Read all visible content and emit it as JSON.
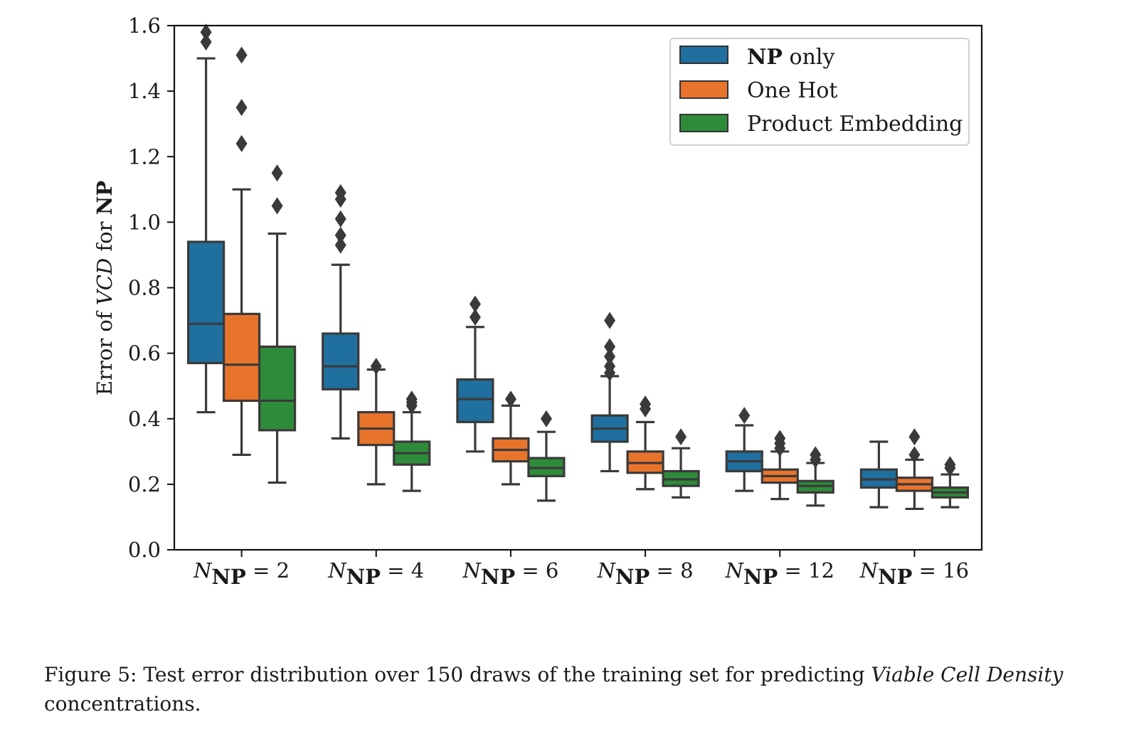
{
  "chart_data": {
    "type": "boxplot",
    "ylabel": {
      "prefix": "Error of ",
      "italic": "VCD",
      "middle": " for ",
      "bold": "NP"
    },
    "ylim": [
      0,
      1.6
    ],
    "yticks": [
      "0.0",
      "0.2",
      "0.4",
      "0.6",
      "0.8",
      "1.0",
      "1.2",
      "1.4",
      "1.6"
    ],
    "categories": [
      {
        "sym": "N",
        "sub": "NP",
        "rest": " = 2"
      },
      {
        "sym": "N",
        "sub": "NP",
        "rest": " = 4"
      },
      {
        "sym": "N",
        "sub": "NP",
        "rest": " = 6"
      },
      {
        "sym": "N",
        "sub": "NP",
        "rest": " = 8"
      },
      {
        "sym": "N",
        "sub": "NP",
        "rest": " = 12"
      },
      {
        "sym": "N",
        "sub": "NP",
        "rest": " = 16"
      }
    ],
    "legend_position": "upper right",
    "series": [
      {
        "name_bold": "NP",
        "name_rest": " only",
        "color": "#1f6f9f",
        "boxes": [
          {
            "whislo": 0.42,
            "q1": 0.57,
            "med": 0.69,
            "q3": 0.94,
            "whishi": 1.5,
            "fliers": [
              1.55,
              1.58
            ]
          },
          {
            "whislo": 0.34,
            "q1": 0.49,
            "med": 0.56,
            "q3": 0.66,
            "whishi": 0.87,
            "fliers": [
              0.93,
              0.96,
              1.01,
              1.07,
              1.09
            ]
          },
          {
            "whislo": 0.3,
            "q1": 0.39,
            "med": 0.46,
            "q3": 0.52,
            "whishi": 0.68,
            "fliers": [
              0.71,
              0.75
            ]
          },
          {
            "whislo": 0.24,
            "q1": 0.33,
            "med": 0.37,
            "q3": 0.41,
            "whishi": 0.53,
            "fliers": [
              0.54,
              0.56,
              0.59,
              0.62,
              0.7
            ]
          },
          {
            "whislo": 0.18,
            "q1": 0.24,
            "med": 0.27,
            "q3": 0.3,
            "whishi": 0.38,
            "fliers": [
              0.41
            ]
          },
          {
            "whislo": 0.13,
            "q1": 0.19,
            "med": 0.215,
            "q3": 0.245,
            "whishi": 0.33,
            "fliers": []
          }
        ]
      },
      {
        "name": "One Hot",
        "color": "#e8742c",
        "boxes": [
          {
            "whislo": 0.29,
            "q1": 0.455,
            "med": 0.565,
            "q3": 0.72,
            "whishi": 1.1,
            "fliers": [
              1.24,
              1.35,
              1.51
            ]
          },
          {
            "whislo": 0.2,
            "q1": 0.32,
            "med": 0.37,
            "q3": 0.42,
            "whishi": 0.55,
            "fliers": [
              0.56
            ]
          },
          {
            "whislo": 0.2,
            "q1": 0.27,
            "med": 0.305,
            "q3": 0.34,
            "whishi": 0.44,
            "fliers": [
              0.46
            ]
          },
          {
            "whislo": 0.185,
            "q1": 0.235,
            "med": 0.265,
            "q3": 0.3,
            "whishi": 0.39,
            "fliers": [
              0.43,
              0.445
            ]
          },
          {
            "whislo": 0.155,
            "q1": 0.205,
            "med": 0.225,
            "q3": 0.245,
            "whishi": 0.3,
            "fliers": [
              0.31,
              0.325,
              0.34
            ]
          },
          {
            "whislo": 0.125,
            "q1": 0.18,
            "med": 0.2,
            "q3": 0.22,
            "whishi": 0.275,
            "fliers": [
              0.29,
              0.345
            ]
          }
        ]
      },
      {
        "name": "Product Embedding",
        "color": "#2e8b3a",
        "boxes": [
          {
            "whislo": 0.205,
            "q1": 0.365,
            "med": 0.455,
            "q3": 0.62,
            "whishi": 0.965,
            "fliers": [
              1.05,
              1.15
            ]
          },
          {
            "whislo": 0.18,
            "q1": 0.26,
            "med": 0.295,
            "q3": 0.33,
            "whishi": 0.42,
            "fliers": [
              0.44,
              0.45,
              0.46
            ]
          },
          {
            "whislo": 0.15,
            "q1": 0.225,
            "med": 0.25,
            "q3": 0.28,
            "whishi": 0.36,
            "fliers": [
              0.4
            ]
          },
          {
            "whislo": 0.16,
            "q1": 0.195,
            "med": 0.215,
            "q3": 0.24,
            "whishi": 0.31,
            "fliers": [
              0.345
            ]
          },
          {
            "whislo": 0.135,
            "q1": 0.175,
            "med": 0.195,
            "q3": 0.21,
            "whishi": 0.265,
            "fliers": [
              0.275,
              0.29
            ]
          },
          {
            "whislo": 0.13,
            "q1": 0.16,
            "med": 0.175,
            "q3": 0.19,
            "whishi": 0.23,
            "fliers": [
              0.25,
              0.26
            ]
          }
        ]
      }
    ]
  },
  "caption": {
    "lead": "Figure 5: Test error distribution over 150 draws of the training set for predicting ",
    "italic": "Viable Cell Density",
    "tail": " concentrations."
  }
}
